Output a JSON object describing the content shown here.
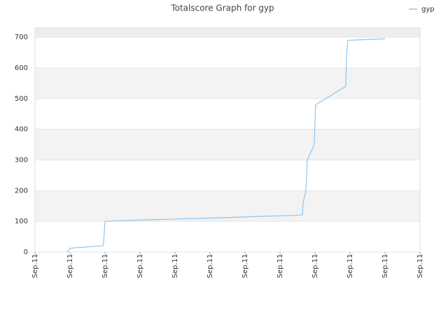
{
  "chart_data": {
    "type": "line",
    "title": "Totalscore Graph for gyp",
    "x": [
      0.92,
      1.0,
      1.16,
      1.44,
      1.76,
      1.94,
      1.96,
      2.0,
      2.3,
      2.94,
      3.6,
      4.2,
      4.84,
      5.5,
      6.1,
      6.74,
      7.36,
      7.64,
      7.66,
      7.74,
      7.78,
      7.9,
      7.96,
      7.98,
      8.02,
      8.88,
      8.9,
      8.94,
      9.44,
      10.0
    ],
    "series": [
      {
        "name": "gyp",
        "color": "#8ec6f0",
        "values": [
          0,
          12,
          14,
          16,
          19,
          20,
          30,
          100,
          102,
          104,
          106,
          108,
          110,
          112,
          115,
          117,
          119,
          121,
          160,
          200,
          300,
          330,
          345,
          360,
          480,
          540,
          640,
          690,
          692,
          695
        ]
      }
    ],
    "xlim": [
      0,
      11
    ],
    "xticks": [
      {
        "value": 0,
        "label": "Sep.11"
      },
      {
        "value": 1,
        "label": "Sep.11"
      },
      {
        "value": 2,
        "label": "Sep.11"
      },
      {
        "value": 3,
        "label": "Sep.11"
      },
      {
        "value": 4,
        "label": "Sep.11"
      },
      {
        "value": 5,
        "label": "Sep.11"
      },
      {
        "value": 6,
        "label": "Sep.11"
      },
      {
        "value": 7,
        "label": "Sep.11"
      },
      {
        "value": 8,
        "label": "Sep.11"
      },
      {
        "value": 9,
        "label": "Sep.11"
      },
      {
        "value": 10,
        "label": "Sep.11"
      },
      {
        "value": 11,
        "label": "Sep.11"
      }
    ],
    "ylim": [
      0,
      730
    ],
    "yticks": [
      0,
      100,
      200,
      300,
      400,
      500,
      600,
      700
    ],
    "grid": true,
    "legend": "top-right"
  }
}
